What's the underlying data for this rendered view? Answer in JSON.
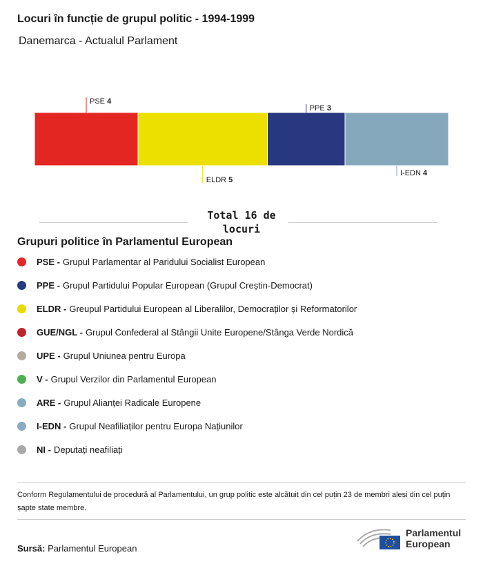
{
  "chart_data": {
    "type": "stacked_bar",
    "title": "Locuri în funcție de grupul politic - 1994-1999",
    "subtitle": "Danemarca - Actualul Parlament",
    "total_label": "Total 16 de locuri",
    "series": [
      {
        "name": "PSE",
        "color": "#e42623",
        "values": [
          4
        ]
      },
      {
        "name": "ELDR",
        "color": "#ebe000",
        "values": [
          5
        ]
      },
      {
        "name": "PPE",
        "color": "#283880",
        "values": [
          3
        ]
      },
      {
        "name": "I-EDN",
        "color": "#85a8bd",
        "values": [
          4
        ]
      }
    ]
  },
  "legend": {
    "title": "Grupuri politice în Parlamentul European",
    "items": [
      {
        "abbr": "PSE -",
        "label": "Grupul Parlamentar al Paridului Socialist European",
        "color": "#e3262a"
      },
      {
        "abbr": "PPE -",
        "label": "Grupul Partidului Popular European (Grupul Creștin-Democrat)",
        "color": "#263a7f"
      },
      {
        "abbr": "ELDR -",
        "label": "Greupul Partidului European al Liberalilor, Democraților și Reformatorilor",
        "color": "#e6dc00"
      },
      {
        "abbr": "GUE/NGL -",
        "label": "Grupul Confederal al Stângii Unite Europene/Stânga Verde Nordică",
        "color": "#c0232b"
      },
      {
        "abbr": "UPE -",
        "label": "Grupul Uniunea pentru Europa",
        "color": "#b5aca0"
      },
      {
        "abbr": "V -",
        "label": "Grupul Verzilor din Parlamentul European",
        "color": "#4caf50"
      },
      {
        "abbr": "ARE -",
        "label": "Grupul Alianței Radicale Europene",
        "color": "#8aaabf"
      },
      {
        "abbr": "I-EDN -",
        "label": "Grupul Neafiliaților pentru Europa Națiunilor",
        "color": "#8aaabf"
      },
      {
        "abbr": "NI -",
        "label": "Deputați neafiliați",
        "color": "#aaaaaa"
      }
    ]
  },
  "footnote": "Conform Regulamentului de procedură al Parlamentului, un grup politic este alcătuit din cel puțin 23 de membri aleși din cel puțin șapte state membre.",
  "source": {
    "label": "Sursă:",
    "text": "Parlamentul European"
  },
  "logo": {
    "line1": "Parlamentul",
    "line2": "European"
  }
}
